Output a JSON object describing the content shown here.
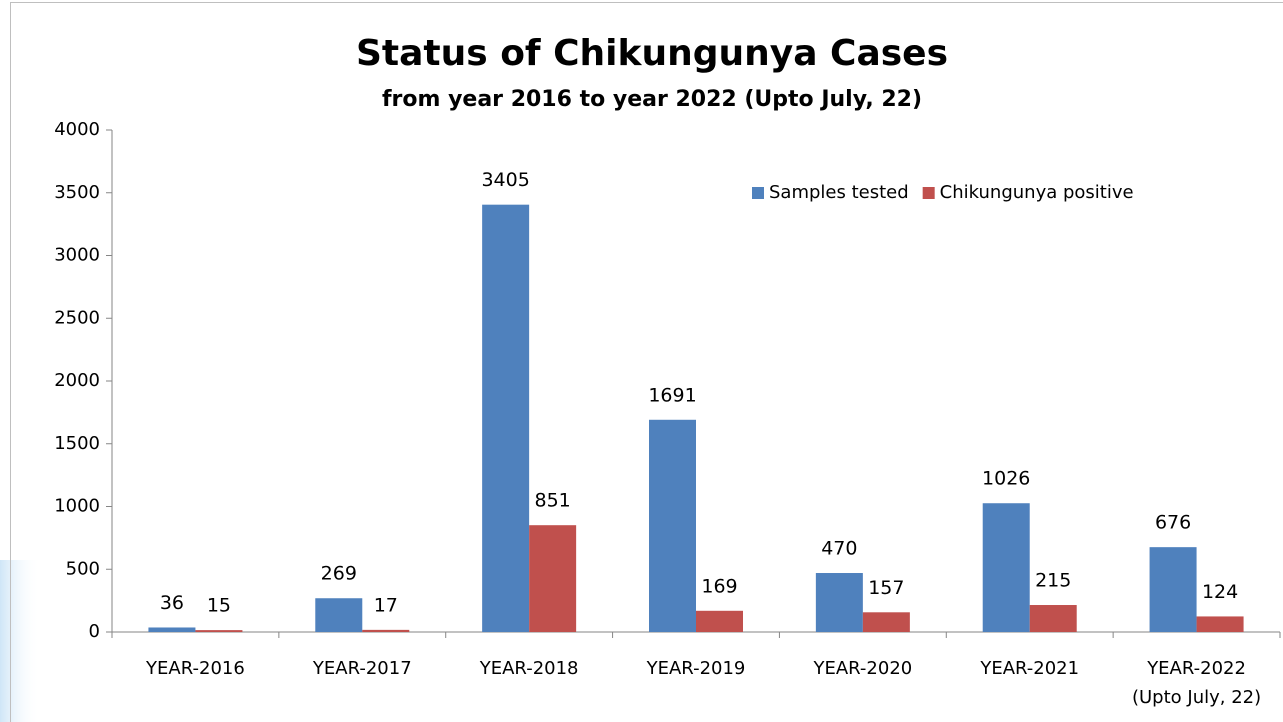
{
  "chart_data": {
    "type": "bar",
    "title": "Status of Chikungunya Cases",
    "subtitle": "from year 2016 to  year 2022 (Upto July, 22)",
    "categories": [
      "YEAR-2016",
      "YEAR-2017",
      "YEAR-2018",
      "YEAR-2019",
      "YEAR-2020",
      "YEAR-2021",
      "YEAR-2022\n(Upto July, 22)"
    ],
    "series": [
      {
        "name": "Samples tested",
        "color": "#4f81bd",
        "values": [
          36,
          269,
          3405,
          1691,
          470,
          1026,
          676
        ]
      },
      {
        "name": "Chikungunya positive",
        "color": "#c0504d",
        "values": [
          15,
          17,
          851,
          169,
          157,
          215,
          124
        ]
      }
    ],
    "ylim": [
      0,
      4000
    ],
    "yticks": [
      0,
      500,
      1000,
      1500,
      2000,
      2500,
      3000,
      3500,
      4000
    ],
    "grid": false,
    "legend": "top-right"
  }
}
